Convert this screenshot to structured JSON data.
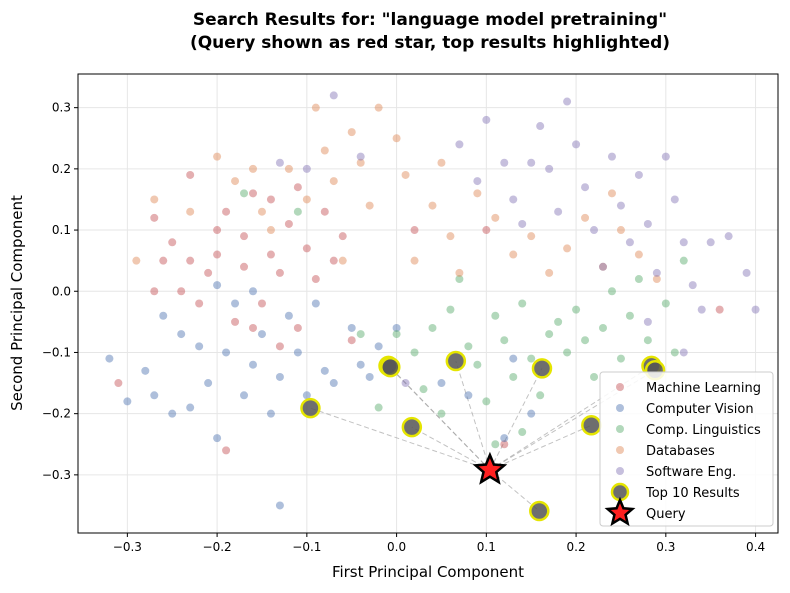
{
  "chart_data": {
    "type": "scatter",
    "title": "Search Results for: \"language model pretraining\"",
    "subtitle": "(Query shown as red star, top results highlighted)",
    "xlabel": "First Principal Component",
    "ylabel": "Second Principal Component",
    "xlim": [
      -0.355,
      0.425
    ],
    "ylim": [
      -0.395,
      0.355
    ],
    "xticks": [
      -0.3,
      -0.2,
      -0.1,
      0.0,
      0.1,
      0.2,
      0.3,
      0.4
    ],
    "xtick_labels": [
      "−0.3",
      "−0.2",
      "−0.1",
      "0.0",
      "0.1",
      "0.2",
      "0.3",
      "0.4"
    ],
    "yticks": [
      -0.3,
      -0.2,
      -0.1,
      0.0,
      0.1,
      0.2,
      0.3
    ],
    "ytick_labels": [
      "−0.3",
      "−0.2",
      "−0.1",
      "0.0",
      "0.1",
      "0.2",
      "0.3"
    ],
    "grid": true,
    "legend_position": "bottom-right",
    "series": [
      {
        "name": "Machine Learning",
        "color": "#C44E52",
        "points": [
          [
            -0.27,
            0.12
          ],
          [
            -0.25,
            0.08
          ],
          [
            -0.23,
            0.05
          ],
          [
            -0.21,
            0.03
          ],
          [
            -0.19,
            0.13
          ],
          [
            -0.17,
            0.09
          ],
          [
            -0.16,
            0.16
          ],
          [
            -0.14,
            0.06
          ],
          [
            -0.12,
            0.11
          ],
          [
            -0.1,
            0.07
          ],
          [
            -0.08,
            0.13
          ],
          [
            -0.06,
            0.09
          ],
          [
            -0.24,
            0.0
          ],
          [
            -0.22,
            -0.02
          ],
          [
            -0.2,
            0.06
          ],
          [
            -0.18,
            -0.05
          ],
          [
            -0.15,
            -0.02
          ],
          [
            -0.13,
            0.03
          ],
          [
            -0.11,
            -0.06
          ],
          [
            -0.09,
            0.02
          ],
          [
            -0.26,
            0.05
          ],
          [
            -0.23,
            0.19
          ],
          [
            -0.2,
            0.1
          ],
          [
            -0.17,
            0.04
          ],
          [
            -0.14,
            0.15
          ],
          [
            -0.11,
            0.17
          ],
          [
            -0.07,
            0.05
          ],
          [
            -0.05,
            -0.08
          ],
          [
            -0.16,
            -0.06
          ],
          [
            -0.13,
            -0.09
          ],
          [
            0.12,
            -0.25
          ],
          [
            0.36,
            -0.03
          ],
          [
            0.02,
            0.1
          ],
          [
            0.1,
            0.1
          ],
          [
            -0.27,
            0.0
          ],
          [
            -0.31,
            -0.15
          ],
          [
            -0.19,
            -0.26
          ]
        ]
      },
      {
        "name": "Computer Vision",
        "color": "#4C72B0",
        "points": [
          [
            -0.32,
            -0.11
          ],
          [
            -0.3,
            -0.18
          ],
          [
            -0.28,
            -0.13
          ],
          [
            -0.26,
            -0.04
          ],
          [
            -0.24,
            -0.07
          ],
          [
            -0.23,
            -0.19
          ],
          [
            -0.21,
            -0.15
          ],
          [
            -0.2,
            -0.24
          ],
          [
            -0.19,
            -0.1
          ],
          [
            -0.18,
            -0.02
          ],
          [
            -0.17,
            -0.17
          ],
          [
            -0.16,
            -0.12
          ],
          [
            -0.15,
            -0.07
          ],
          [
            -0.14,
            -0.2
          ],
          [
            -0.13,
            -0.14
          ],
          [
            -0.12,
            -0.04
          ],
          [
            -0.11,
            -0.1
          ],
          [
            -0.1,
            -0.17
          ],
          [
            -0.09,
            -0.02
          ],
          [
            -0.08,
            -0.13
          ],
          [
            -0.07,
            -0.15
          ],
          [
            -0.05,
            -0.06
          ],
          [
            -0.03,
            -0.14
          ],
          [
            -0.02,
            -0.09
          ],
          [
            0.0,
            -0.06
          ],
          [
            -0.22,
            -0.09
          ],
          [
            -0.25,
            -0.2
          ],
          [
            -0.13,
            -0.35
          ],
          [
            -0.27,
            -0.17
          ],
          [
            0.05,
            -0.15
          ],
          [
            0.08,
            -0.17
          ],
          [
            0.13,
            -0.11
          ],
          [
            0.15,
            -0.2
          ],
          [
            0.12,
            -0.24
          ],
          [
            -0.2,
            0.01
          ],
          [
            -0.16,
            0.0
          ],
          [
            -0.04,
            -0.12
          ]
        ]
      },
      {
        "name": "Comp. Linguistics",
        "color": "#55A868",
        "points": [
          [
            0.0,
            -0.07
          ],
          [
            0.02,
            -0.1
          ],
          [
            0.04,
            -0.06
          ],
          [
            0.06,
            -0.03
          ],
          [
            0.08,
            -0.09
          ],
          [
            0.09,
            -0.12
          ],
          [
            0.1,
            -0.18
          ],
          [
            0.11,
            -0.04
          ],
          [
            0.12,
            -0.08
          ],
          [
            0.13,
            -0.14
          ],
          [
            0.14,
            -0.02
          ],
          [
            0.15,
            -0.11
          ],
          [
            0.16,
            -0.17
          ],
          [
            0.17,
            -0.07
          ],
          [
            0.18,
            -0.05
          ],
          [
            0.19,
            -0.1
          ],
          [
            0.2,
            -0.03
          ],
          [
            0.21,
            -0.08
          ],
          [
            0.22,
            -0.14
          ],
          [
            0.23,
            -0.06
          ],
          [
            0.24,
            0.0
          ],
          [
            0.25,
            -0.11
          ],
          [
            0.26,
            -0.04
          ],
          [
            0.27,
            0.02
          ],
          [
            0.28,
            -0.08
          ],
          [
            0.3,
            -0.02
          ],
          [
            0.31,
            -0.1
          ],
          [
            0.32,
            0.05
          ],
          [
            0.05,
            -0.2
          ],
          [
            0.03,
            -0.16
          ],
          [
            0.11,
            -0.25
          ],
          [
            -0.04,
            -0.07
          ],
          [
            -0.02,
            -0.19
          ],
          [
            0.07,
            0.02
          ],
          [
            -0.17,
            0.16
          ],
          [
            -0.11,
            0.13
          ],
          [
            0.14,
            -0.23
          ]
        ]
      },
      {
        "name": "Databases",
        "color": "#DD8452",
        "points": [
          [
            -0.29,
            0.05
          ],
          [
            -0.27,
            0.15
          ],
          [
            -0.23,
            0.13
          ],
          [
            -0.2,
            0.22
          ],
          [
            -0.18,
            0.18
          ],
          [
            -0.16,
            0.2
          ],
          [
            -0.14,
            0.1
          ],
          [
            -0.12,
            0.2
          ],
          [
            -0.1,
            0.15
          ],
          [
            -0.08,
            0.23
          ],
          [
            -0.07,
            0.18
          ],
          [
            -0.05,
            0.26
          ],
          [
            -0.04,
            0.21
          ],
          [
            -0.03,
            0.14
          ],
          [
            -0.02,
            0.3
          ],
          [
            0.0,
            0.25
          ],
          [
            0.01,
            0.19
          ],
          [
            0.02,
            0.05
          ],
          [
            0.04,
            0.14
          ],
          [
            0.05,
            0.21
          ],
          [
            0.06,
            0.09
          ],
          [
            0.07,
            0.03
          ],
          [
            0.09,
            0.16
          ],
          [
            0.11,
            0.12
          ],
          [
            0.13,
            0.06
          ],
          [
            0.15,
            0.09
          ],
          [
            0.17,
            0.03
          ],
          [
            0.19,
            0.07
          ],
          [
            0.21,
            0.12
          ],
          [
            0.23,
            0.04
          ],
          [
            0.25,
            0.1
          ],
          [
            0.27,
            0.06
          ],
          [
            0.29,
            0.02
          ],
          [
            -0.09,
            0.3
          ],
          [
            -0.15,
            0.13
          ],
          [
            -0.06,
            0.05
          ],
          [
            0.24,
            0.16
          ]
        ]
      },
      {
        "name": "Software Eng.",
        "color": "#8172B3",
        "points": [
          [
            0.07,
            0.24
          ],
          [
            0.09,
            0.18
          ],
          [
            0.1,
            0.28
          ],
          [
            0.12,
            0.21
          ],
          [
            0.13,
            0.15
          ],
          [
            0.14,
            0.11
          ],
          [
            0.16,
            0.27
          ],
          [
            0.17,
            0.2
          ],
          [
            0.18,
            0.13
          ],
          [
            0.19,
            0.31
          ],
          [
            0.2,
            0.24
          ],
          [
            0.21,
            0.17
          ],
          [
            0.22,
            0.1
          ],
          [
            0.23,
            0.04
          ],
          [
            0.24,
            0.22
          ],
          [
            0.25,
            0.14
          ],
          [
            0.26,
            0.08
          ],
          [
            0.27,
            0.19
          ],
          [
            0.28,
            0.11
          ],
          [
            0.29,
            0.03
          ],
          [
            0.3,
            0.22
          ],
          [
            0.31,
            0.15
          ],
          [
            0.32,
            0.08
          ],
          [
            0.33,
            0.01
          ],
          [
            0.34,
            -0.03
          ],
          [
            0.35,
            0.08
          ],
          [
            0.37,
            0.09
          ],
          [
            0.39,
            0.03
          ],
          [
            0.4,
            -0.03
          ],
          [
            0.32,
            -0.1
          ],
          [
            -0.07,
            0.32
          ],
          [
            -0.04,
            0.22
          ],
          [
            -0.1,
            0.2
          ],
          [
            -0.13,
            0.21
          ],
          [
            0.15,
            0.21
          ],
          [
            0.28,
            -0.05
          ],
          [
            0.01,
            -0.15
          ]
        ]
      }
    ],
    "top_results": {
      "name": "Top 10 Results",
      "color": "#555555",
      "edge_color": "#E5E500",
      "points": [
        [
          -0.009,
          -0.122
        ],
        [
          -0.007,
          -0.124
        ],
        [
          0.066,
          -0.114
        ],
        [
          0.162,
          -0.126
        ],
        [
          0.284,
          -0.122
        ],
        [
          0.288,
          -0.129
        ],
        [
          -0.096,
          -0.191
        ],
        [
          0.017,
          -0.222
        ],
        [
          0.217,
          -0.219
        ],
        [
          0.159,
          -0.359
        ]
      ]
    },
    "query": {
      "name": "Query",
      "color": "#FF2020",
      "point": [
        0.104,
        -0.292
      ]
    }
  }
}
